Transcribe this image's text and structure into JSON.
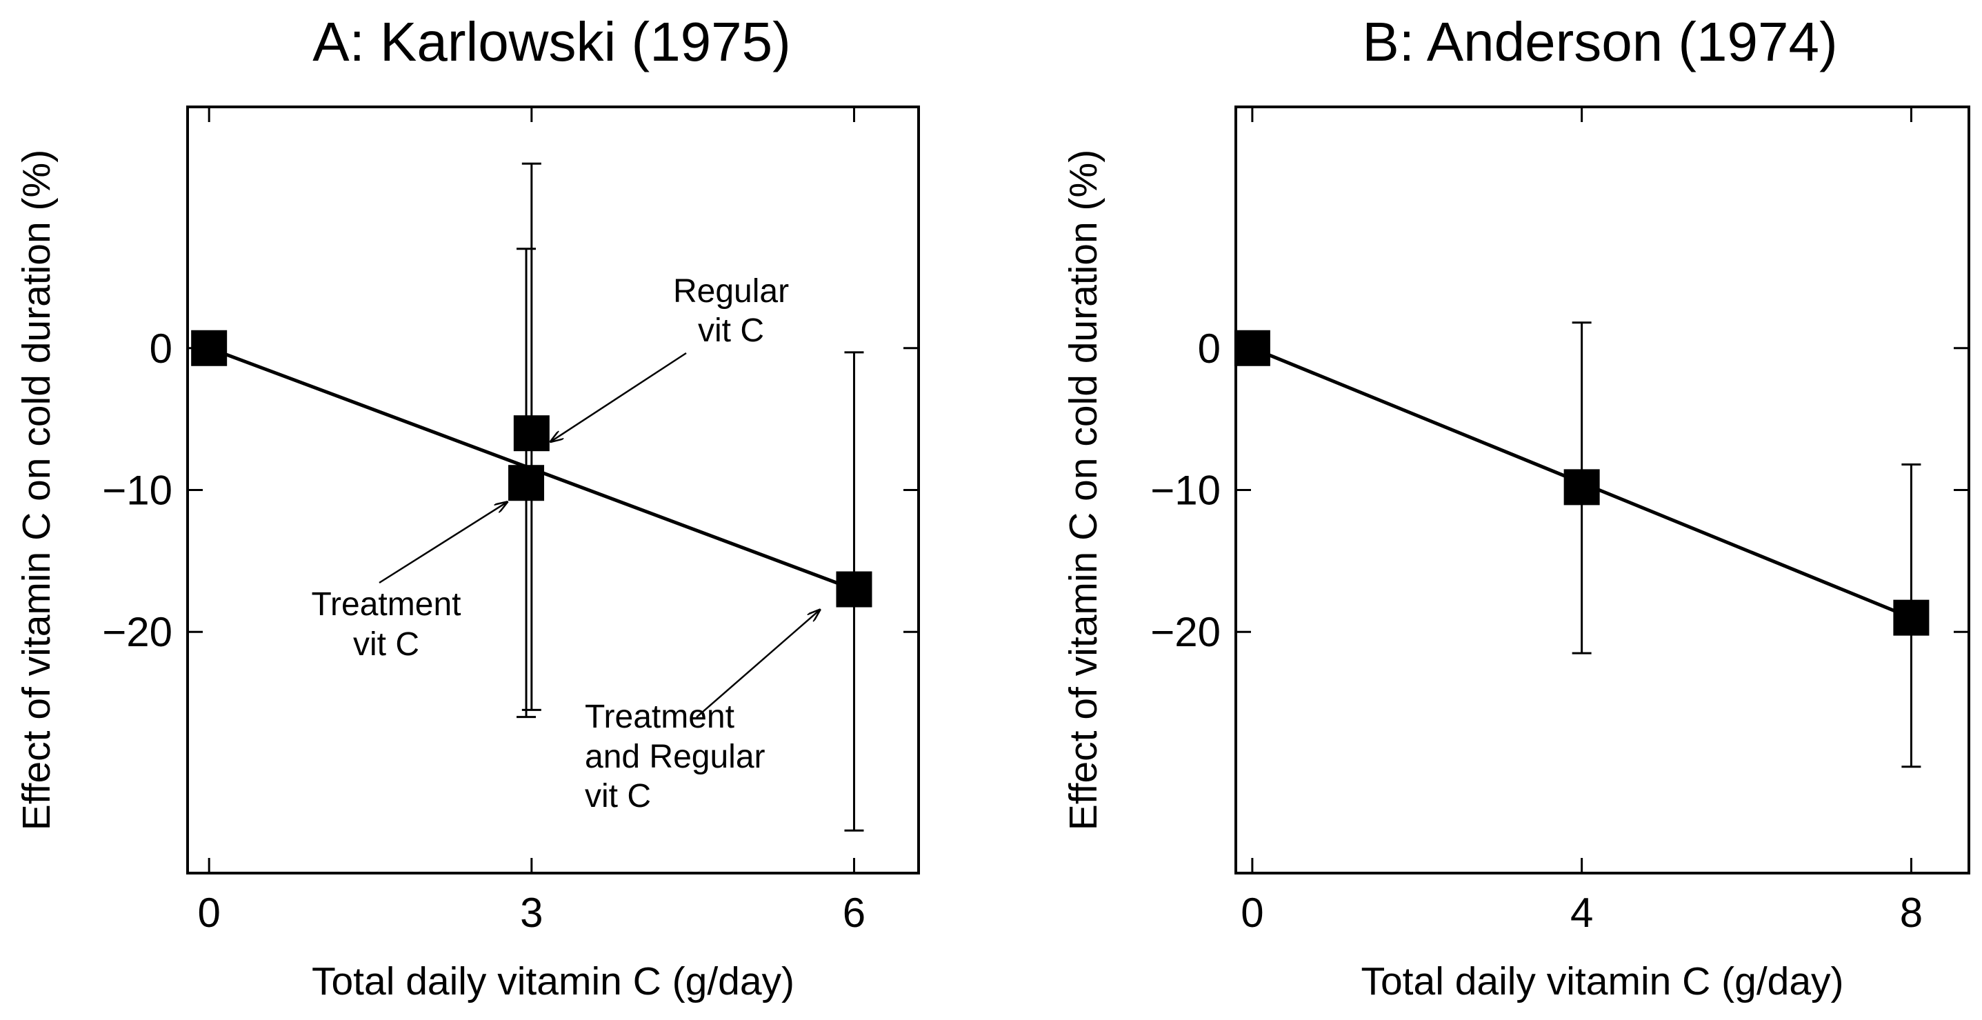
{
  "chart_data": [
    {
      "type": "scatter",
      "title": "A: Karlowski (1975)",
      "xlabel": "Total daily vitamin C (g/day)",
      "ylabel": "Effect of vitamin C on cold duration (%)",
      "xlim": [
        -0.2,
        6.6
      ],
      "ylim": [
        -37,
        17
      ],
      "x_ticks": [
        0,
        3,
        6
      ],
      "y_ticks": [
        0,
        -10,
        -20
      ],
      "x_tick_labels": [
        "0",
        "3",
        "6"
      ],
      "y_tick_labels": [
        "0",
        "−10",
        "−20"
      ],
      "grid": false,
      "points": [
        {
          "x": 0,
          "y": 0
        },
        {
          "x": 3.0,
          "y": -6,
          "err_low": -25.5,
          "err_high": 13
        },
        {
          "x": 2.95,
          "y": -9.5,
          "err_low": -26,
          "err_high": 7
        },
        {
          "x": 6,
          "y": -17,
          "err_low": -34,
          "err_high": -0.3
        }
      ],
      "fit_line": {
        "x": [
          0,
          6
        ],
        "y": [
          0,
          -17
        ]
      },
      "annotations": [
        {
          "lines": [
            "Regular",
            "vit C"
          ],
          "points_to": {
            "x": 3.0,
            "y": -6
          }
        },
        {
          "lines": [
            "Treatment",
            "vit C"
          ],
          "points_to": {
            "x": 2.95,
            "y": -9.5
          }
        },
        {
          "lines": [
            "Treatment",
            "and Regular",
            "vit C"
          ],
          "points_to": {
            "x": 6,
            "y": -17
          }
        }
      ],
      "marker_color": "#000000"
    },
    {
      "type": "scatter",
      "title": "B: Anderson (1974)",
      "xlabel": "Total daily vitamin C (g/day)",
      "ylabel": "Effect of vitamin C on cold duration (%)",
      "xlim": [
        -0.2,
        8.7
      ],
      "ylim": [
        -37,
        17
      ],
      "x_ticks": [
        0,
        4,
        8
      ],
      "y_ticks": [
        0,
        -10,
        -20
      ],
      "x_tick_labels": [
        "0",
        "4",
        "8"
      ],
      "y_tick_labels": [
        "0",
        "−10",
        "−20"
      ],
      "grid": false,
      "points": [
        {
          "x": 0,
          "y": 0
        },
        {
          "x": 4,
          "y": -9.8,
          "err_low": -21.5,
          "err_high": 1.8
        },
        {
          "x": 8,
          "y": -19,
          "err_low": -29.5,
          "err_high": -8.2
        }
      ],
      "fit_line": {
        "x": [
          0,
          8
        ],
        "y": [
          0,
          -19
        ]
      },
      "marker_color": "#000000"
    }
  ]
}
